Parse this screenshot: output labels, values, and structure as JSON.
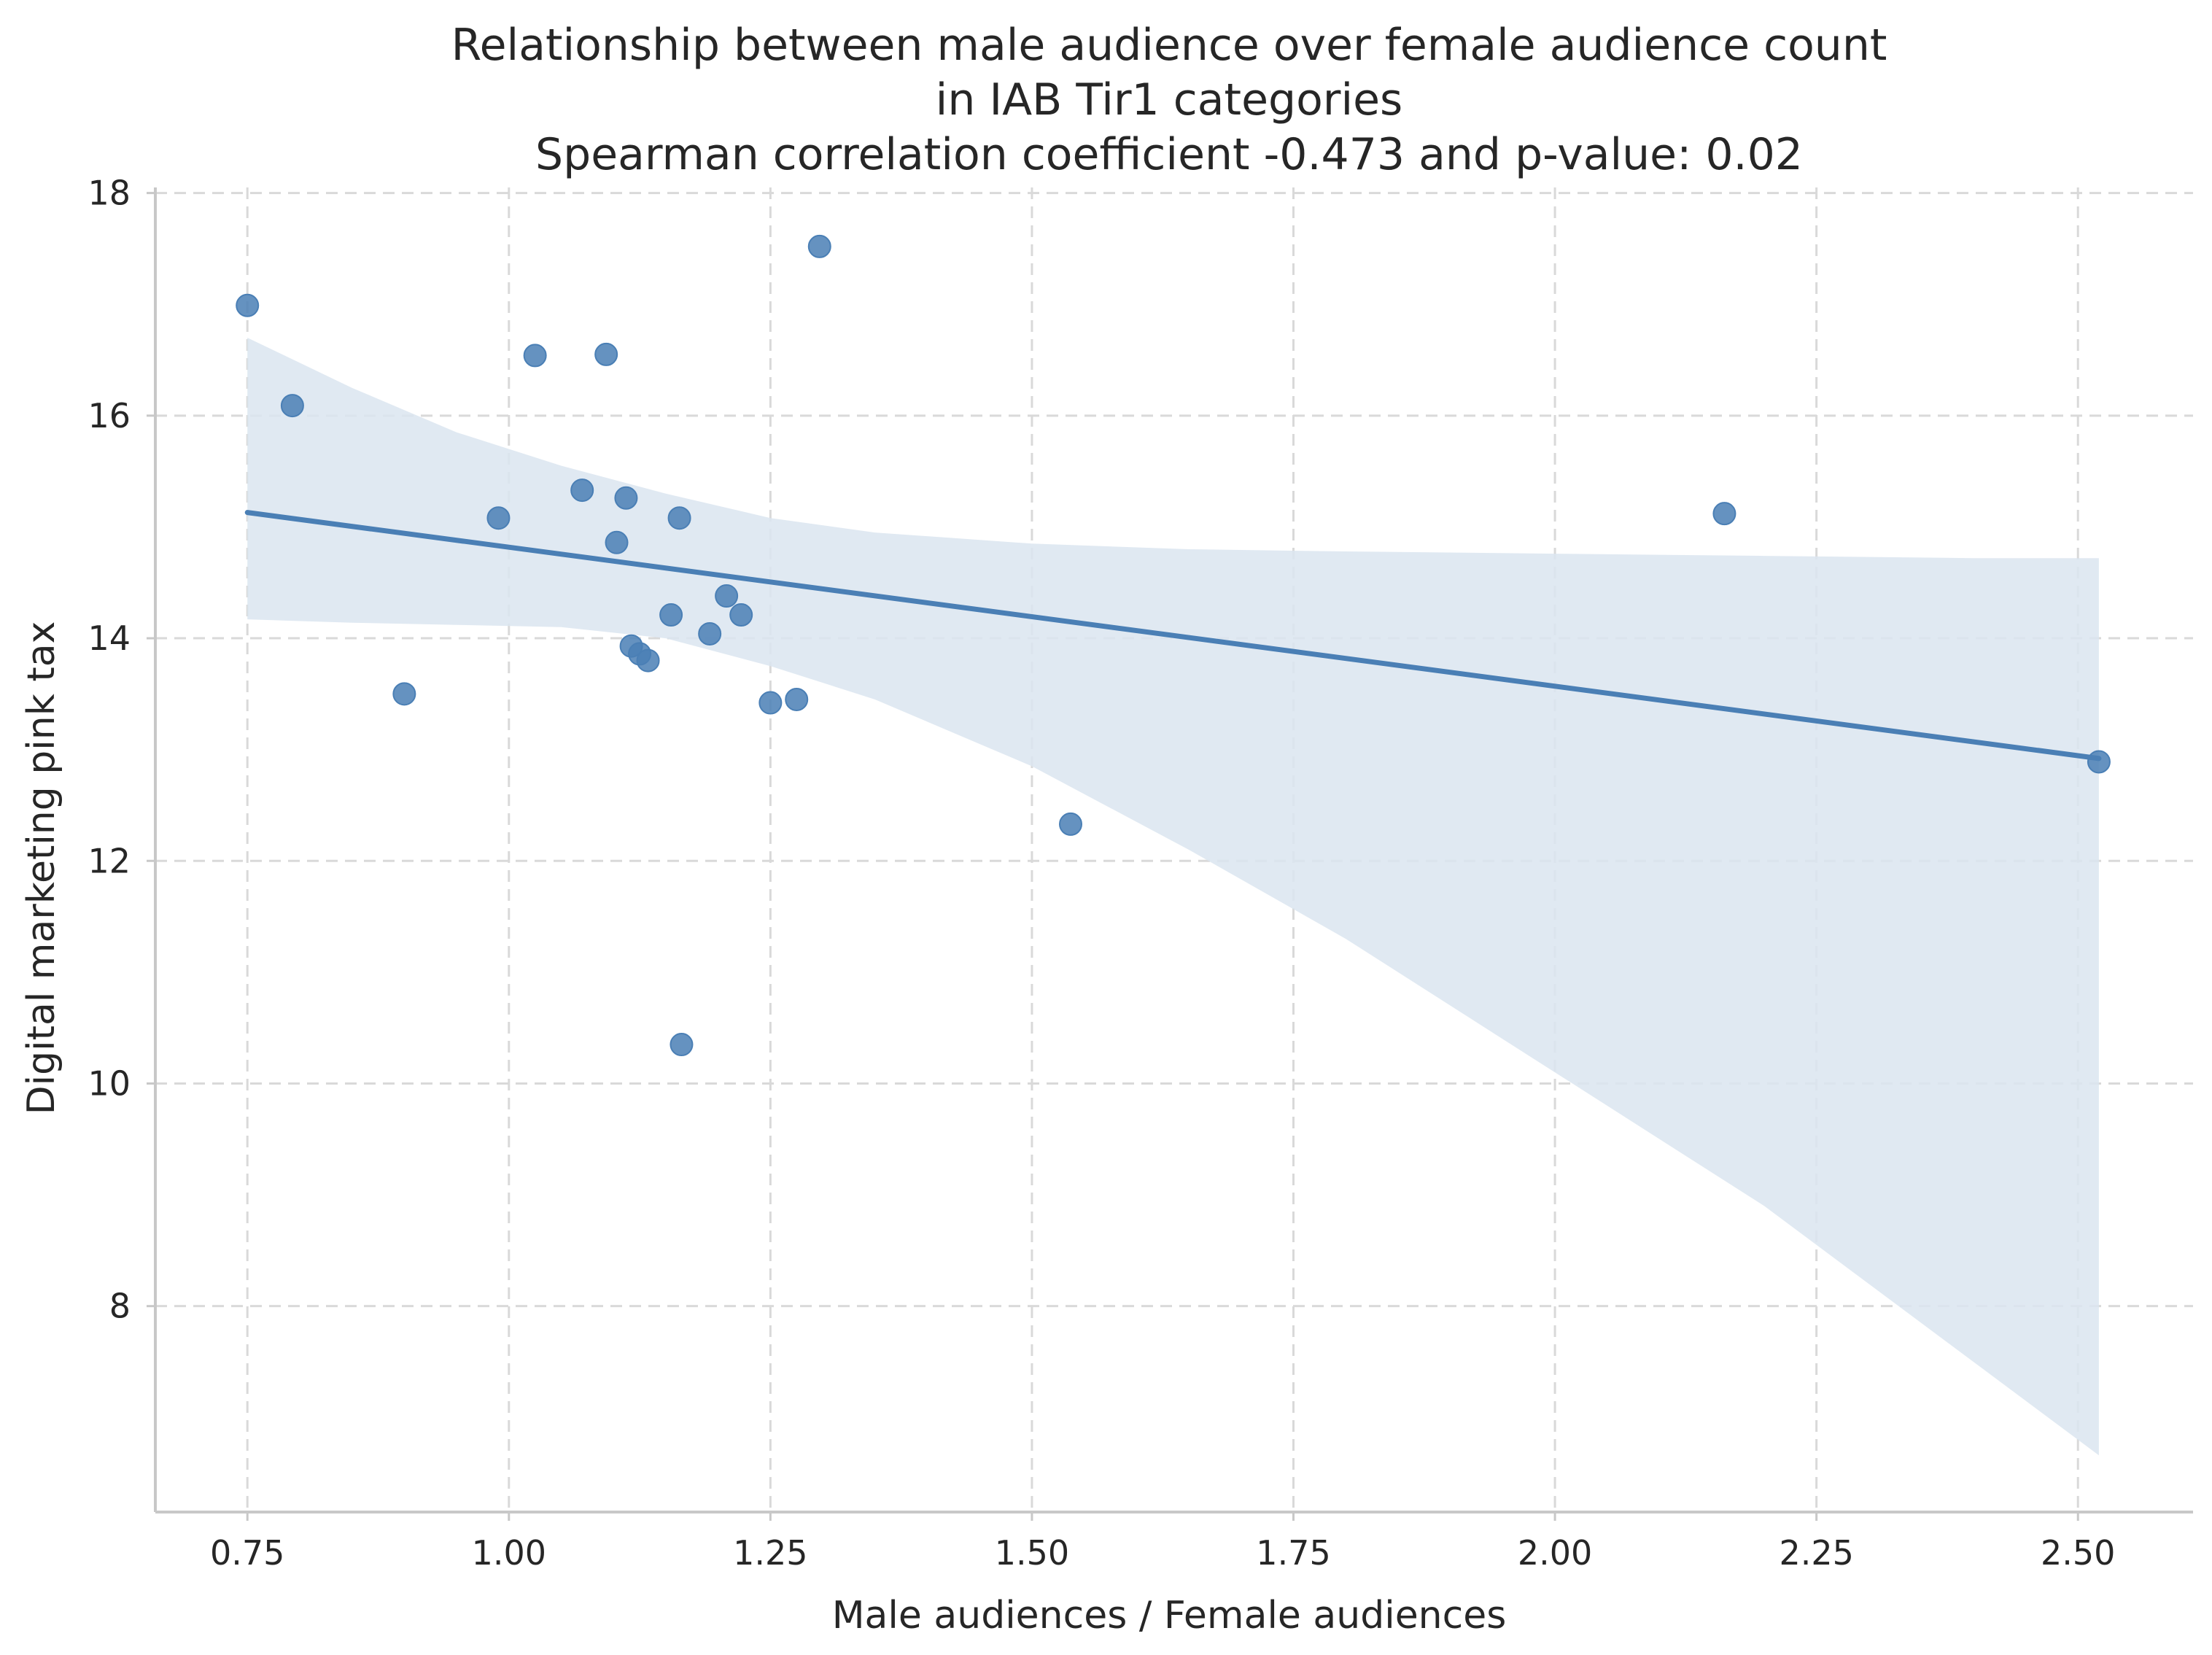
{
  "chart_data": {
    "type": "scatter",
    "title_lines": [
      "Relationship between male audience over female audience count",
      "in IAB Tir1 categories",
      "Spearman correlation coefficient -0.473 and p-value: 0.02"
    ],
    "xlabel": "Male audiences / Female audiences",
    "ylabel": "Digital marketing pink tax",
    "xlim": [
      0.662,
      2.61
    ],
    "ylim": [
      6.15,
      18.05
    ],
    "xticks": [
      0.75,
      1.0,
      1.25,
      1.5,
      1.75,
      2.0,
      2.25,
      2.5
    ],
    "xtick_labels": [
      "0.75",
      "1.00",
      "1.25",
      "1.50",
      "1.75",
      "2.00",
      "2.25",
      "2.50"
    ],
    "yticks": [
      8,
      10,
      12,
      14,
      16,
      18
    ],
    "ytick_labels": [
      "8",
      "10",
      "12",
      "14",
      "16",
      "18"
    ],
    "grid": true,
    "colors": {
      "points": "#4a7fb5",
      "regression_line": "#4a7fb5",
      "confidence_band": "#dbe5f0",
      "grid": "#d9d9d9",
      "spine": "#c8c8c8",
      "text": "#262626"
    },
    "points": [
      {
        "x": 0.75,
        "y": 16.99
      },
      {
        "x": 0.793,
        "y": 16.09
      },
      {
        "x": 0.9,
        "y": 13.5
      },
      {
        "x": 0.99,
        "y": 15.08
      },
      {
        "x": 1.025,
        "y": 16.54
      },
      {
        "x": 1.07,
        "y": 15.33
      },
      {
        "x": 1.093,
        "y": 16.55
      },
      {
        "x": 1.103,
        "y": 14.86
      },
      {
        "x": 1.112,
        "y": 15.26
      },
      {
        "x": 1.117,
        "y": 13.93
      },
      {
        "x": 1.125,
        "y": 13.86
      },
      {
        "x": 1.133,
        "y": 13.8
      },
      {
        "x": 1.155,
        "y": 14.21
      },
      {
        "x": 1.163,
        "y": 15.08
      },
      {
        "x": 1.165,
        "y": 10.35
      },
      {
        "x": 1.192,
        "y": 14.04
      },
      {
        "x": 1.208,
        "y": 14.38
      },
      {
        "x": 1.222,
        "y": 14.21
      },
      {
        "x": 1.25,
        "y": 13.42
      },
      {
        "x": 1.275,
        "y": 13.45
      },
      {
        "x": 1.297,
        "y": 17.52
      },
      {
        "x": 1.537,
        "y": 12.33
      },
      {
        "x": 2.162,
        "y": 15.12
      },
      {
        "x": 2.52,
        "y": 12.89
      }
    ],
    "regression_line": {
      "x": [
        0.75,
        2.52
      ],
      "y": [
        15.13,
        12.92
      ]
    },
    "confidence_band": {
      "x": [
        0.75,
        0.85,
        0.95,
        1.05,
        1.15,
        1.25,
        1.35,
        1.5,
        1.65,
        1.8,
        2.0,
        2.2,
        2.4,
        2.52
      ],
      "upper": [
        16.7,
        16.25,
        15.85,
        15.55,
        15.3,
        15.08,
        14.95,
        14.85,
        14.8,
        14.78,
        14.76,
        14.74,
        14.72,
        14.72
      ],
      "lower": [
        14.17,
        14.14,
        14.12,
        14.1,
        14.0,
        13.75,
        13.45,
        12.85,
        12.1,
        11.3,
        10.1,
        8.9,
        7.5,
        6.66
      ]
    }
  }
}
